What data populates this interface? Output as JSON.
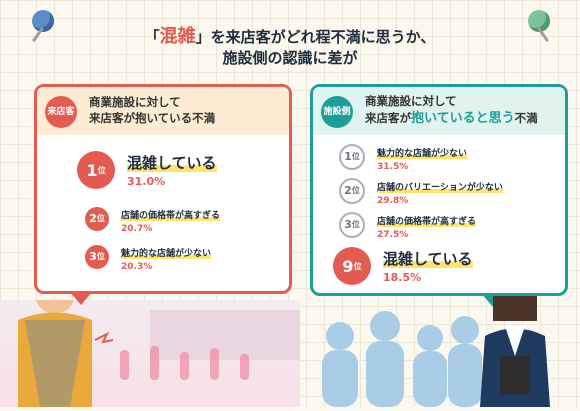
{
  "title": {
    "quote_open": "「",
    "highlight": "混雑",
    "quote_close": "」",
    "line1_rest": "を来店客がどれ程不満に思うか、",
    "line2": "施設側の認識に差が"
  },
  "customer_panel": {
    "badge": "来店客",
    "header_line1": "商業施設に対して",
    "header_line2": "来店客が抱いている不満",
    "ranks": [
      {
        "rank": "1",
        "suffix": "位",
        "name": "混雑している",
        "percent": "31.0%"
      },
      {
        "rank": "2",
        "suffix": "位",
        "name": "店舗の価格帯が高すぎる",
        "percent": "20.7%"
      },
      {
        "rank": "3",
        "suffix": "位",
        "name": "魅力的な店舗が少ない",
        "percent": "20.3%"
      }
    ]
  },
  "facility_panel": {
    "badge": "施設側",
    "header_line1": "商業施設に対して",
    "header_line2_pre": "来店客が",
    "header_line2_accent": "抱いていると思う",
    "header_line2_post": "不満",
    "ranks": [
      {
        "rank": "1",
        "suffix": "位",
        "name": "魅力的な店舗が少ない",
        "percent": "31.5%"
      },
      {
        "rank": "2",
        "suffix": "位",
        "name": "店舗のバリエーションが少ない",
        "percent": "29.8%"
      },
      {
        "rank": "3",
        "suffix": "位",
        "name": "店舗の価格帯が高すぎる",
        "percent": "27.5%"
      },
      {
        "rank": "9",
        "suffix": "位",
        "name": "混雑している",
        "percent": "18.5%"
      }
    ]
  },
  "colors": {
    "customer_accent": "#e35c52",
    "facility_accent": "#1d9e98",
    "highlight": "#ffe36a"
  }
}
